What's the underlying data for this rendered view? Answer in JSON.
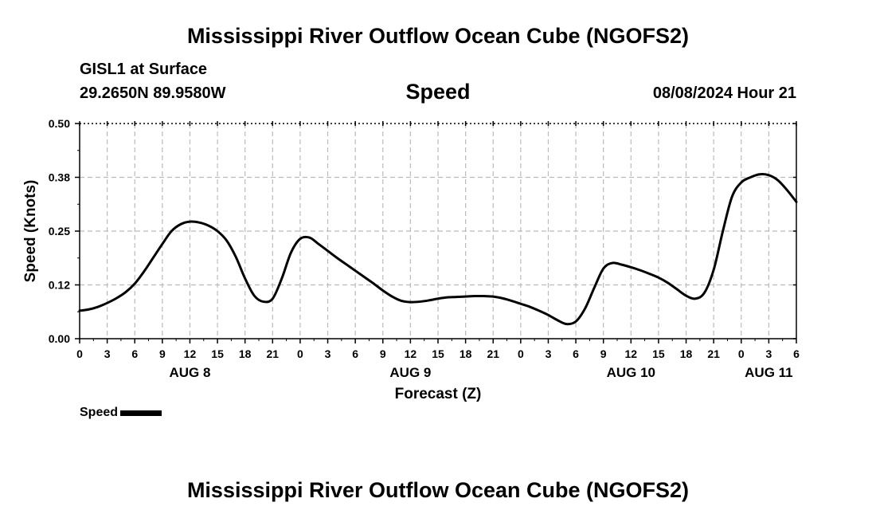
{
  "header": {
    "title": "Mississippi River Outflow Ocean Cube (NGOFS2)",
    "station": "GISL1 at Surface",
    "coords": "29.2650N  89.9580W",
    "variable": "Speed",
    "datetime": "08/08/2024 Hour 21"
  },
  "footer": {
    "title": "Mississippi River Outflow Ocean Cube (NGOFS2)"
  },
  "legend": {
    "label": "Speed"
  },
  "colors": {
    "line": "#000000",
    "grid": "#bbbbbb",
    "axis": "#000000"
  },
  "chart_data": {
    "type": "line",
    "title": "Speed",
    "xlabel": "Forecast (Z)",
    "ylabel": "Speed (Knots)",
    "xlim": [
      0,
      78
    ],
    "ylim": [
      0,
      0.5
    ],
    "yticks": [
      0,
      0.125,
      0.25,
      0.375,
      0.5
    ],
    "ytick_labels": [
      "0.00",
      "0.12",
      "0.25",
      "0.38",
      "0.50"
    ],
    "xticks": [
      0,
      3,
      6,
      9,
      12,
      15,
      18,
      21,
      24,
      27,
      30,
      33,
      36,
      39,
      42,
      45,
      48,
      51,
      54,
      57,
      60,
      63,
      66,
      69,
      72,
      75,
      78
    ],
    "xtick_labels": [
      "0",
      "3",
      "6",
      "9",
      "12",
      "15",
      "18",
      "21",
      "0",
      "3",
      "6",
      "9",
      "12",
      "15",
      "18",
      "21",
      "0",
      "3",
      "6",
      "9",
      "12",
      "15",
      "18",
      "21",
      "0",
      "3",
      "6"
    ],
    "date_labels": [
      {
        "x": 12,
        "label": "AUG 8"
      },
      {
        "x": 36,
        "label": "AUG 9"
      },
      {
        "x": 60,
        "label": "AUG 10"
      },
      {
        "x": 75,
        "label": "AUG 11"
      }
    ],
    "grid": true,
    "legend_position": "bottom-left",
    "series": [
      {
        "name": "Speed",
        "x": [
          0,
          1,
          2,
          3,
          4,
          5,
          6,
          7,
          8,
          9,
          10,
          11,
          12,
          13,
          14,
          15,
          16,
          17,
          18,
          19,
          20,
          21,
          22,
          23,
          24,
          25,
          26,
          27,
          28,
          29,
          30,
          31,
          32,
          33,
          34,
          35,
          36,
          37,
          38,
          39,
          40,
          41,
          42,
          43,
          44,
          45,
          46,
          47,
          48,
          49,
          50,
          51,
          52,
          53,
          54,
          55,
          56,
          57,
          58,
          59,
          60,
          61,
          62,
          63,
          64,
          65,
          66,
          67,
          68,
          69,
          70,
          71,
          72,
          73,
          74,
          75,
          76,
          77,
          78
        ],
        "values": [
          0.065,
          0.068,
          0.074,
          0.083,
          0.094,
          0.108,
          0.128,
          0.156,
          0.188,
          0.22,
          0.25,
          0.266,
          0.272,
          0.27,
          0.263,
          0.25,
          0.228,
          0.19,
          0.14,
          0.1,
          0.086,
          0.093,
          0.14,
          0.2,
          0.232,
          0.235,
          0.22,
          0.204,
          0.188,
          0.173,
          0.158,
          0.143,
          0.128,
          0.112,
          0.098,
          0.088,
          0.085,
          0.086,
          0.089,
          0.093,
          0.096,
          0.097,
          0.098,
          0.099,
          0.099,
          0.098,
          0.094,
          0.088,
          0.081,
          0.074,
          0.065,
          0.055,
          0.043,
          0.034,
          0.04,
          0.07,
          0.118,
          0.163,
          0.176,
          0.172,
          0.166,
          0.159,
          0.151,
          0.142,
          0.13,
          0.115,
          0.1,
          0.093,
          0.107,
          0.16,
          0.25,
          0.33,
          0.363,
          0.375,
          0.382,
          0.38,
          0.368,
          0.345,
          0.318
        ]
      }
    ]
  }
}
